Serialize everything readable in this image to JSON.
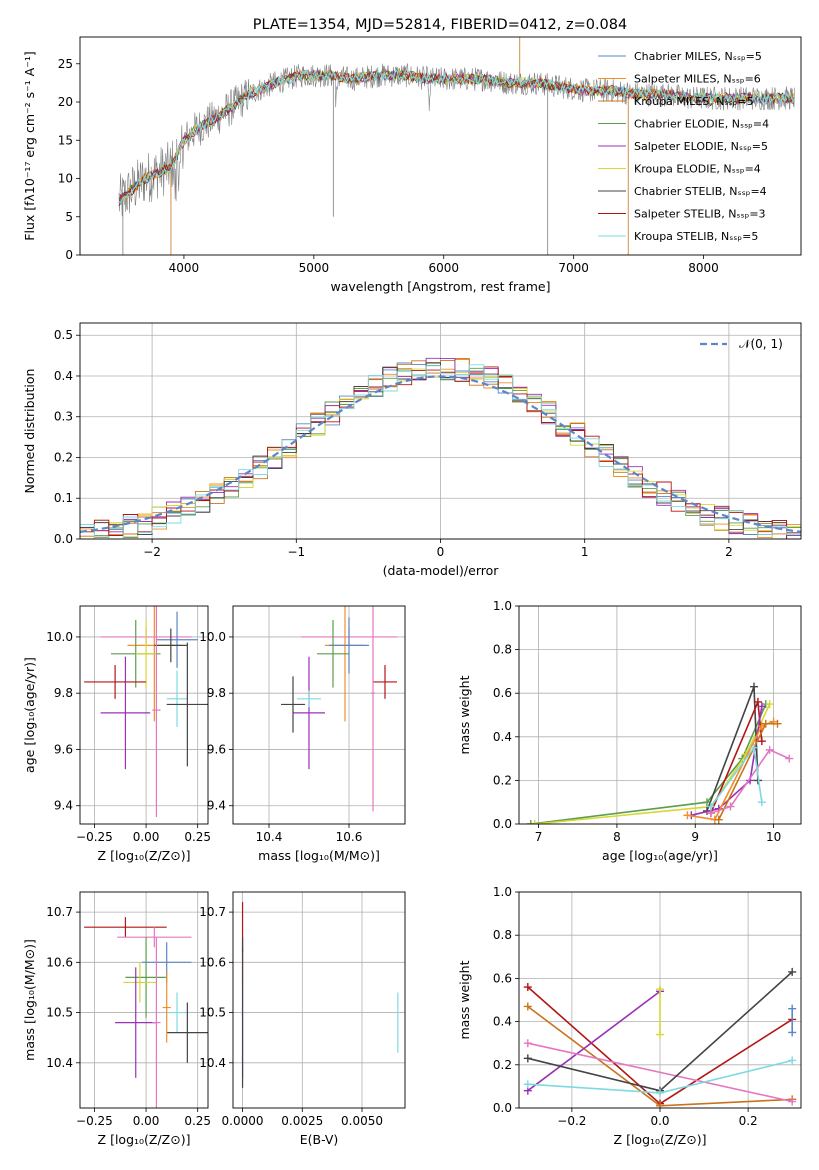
{
  "chart_data": [
    {
      "id": "spectrum",
      "type": "line",
      "title": "PLATE=1354, MJD=52814, FIBERID=0412, z=0.084",
      "xlabel": "wavelength [Angstrom, rest frame]",
      "ylabel": "Flux [fλ10⁻¹⁷ erg cm⁻² s⁻¹ A⁻¹]",
      "xlim": [
        3200,
        8750
      ],
      "ylim": [
        0,
        28.5
      ],
      "xticks": [
        "4000",
        "5000",
        "6000",
        "7000",
        "8000"
      ],
      "yticks": [
        "0",
        "5",
        "10",
        "15",
        "20",
        "25"
      ],
      "grid": false,
      "legend_position": "top-right",
      "series": [
        {
          "name": "Chabrier MILES, Nₛₛₚ=5",
          "color": "#5b86c8"
        },
        {
          "name": "Salpeter MILES, Nₛₛₚ=6",
          "color": "#f28e2b"
        },
        {
          "name": "Kroupa MILES, Nₛₛₚ=5",
          "color": "#c8741c"
        },
        {
          "name": "Chabrier ELODIE, Nₛₛₚ=4",
          "color": "#5a9e4b"
        },
        {
          "name": "Salpeter ELODIE, Nₛₛₚ=5",
          "color": "#9b30b8"
        },
        {
          "name": "Kroupa ELODIE, Nₛₛₚ=4",
          "color": "#d7d735"
        },
        {
          "name": "Chabrier STELIB, Nₛₛₚ=4",
          "color": "#444444"
        },
        {
          "name": "Salpeter STELIB, Nₛₛₚ=3",
          "color": "#b31515"
        },
        {
          "name": "Kroupa STELIB, Nₛₛₚ=5",
          "color": "#7fd9e0"
        }
      ],
      "continuum": {
        "x": [
          3500,
          3700,
          3900,
          4000,
          4100,
          4300,
          4500,
          4700,
          4900,
          5100,
          5300,
          5500,
          5700,
          5900,
          6100,
          6300,
          6500,
          6700,
          6900,
          7100,
          7300,
          7500,
          7700,
          7900,
          8100,
          8300,
          8500,
          8700
        ],
        "y": [
          7,
          10,
          11.5,
          15,
          16.5,
          18.5,
          21,
          22.5,
          23.5,
          23.5,
          23,
          23.5,
          23.5,
          23,
          23,
          23,
          22.5,
          22.5,
          22,
          21.5,
          21.5,
          21,
          21,
          20.5,
          20.5,
          20.5,
          20.5,
          20.5
        ]
      }
    },
    {
      "id": "residuals",
      "type": "bar",
      "xlabel": "(data-model)/error",
      "ylabel": "Normed distribution",
      "xlim": [
        -2.5,
        2.5
      ],
      "ylim": [
        0,
        0.53
      ],
      "xticks": [
        "−2",
        "−1",
        "0",
        "1",
        "2"
      ],
      "yticks": [
        "0.0",
        "0.1",
        "0.2",
        "0.3",
        "0.4",
        "0.5"
      ],
      "grid": true,
      "legend_position": "top-right",
      "legend": "𝒩(0, 1)",
      "gauss_color": "#5b86c8",
      "bin_width": 0.1
    },
    {
      "id": "age-vs-Z",
      "type": "scatter",
      "xlabel": "Z [log₁₀(Z/Z⊙)]",
      "ylabel": "age  [log₁₀(age/yr)]",
      "xlim": [
        -0.32,
        0.3
      ],
      "ylim": [
        9.335,
        10.11
      ],
      "xticks": [
        "−0.25",
        "0.00",
        "0.25"
      ],
      "yticks": [
        "9.4",
        "9.6",
        "9.8",
        "10.0"
      ],
      "grid": true,
      "points": [
        {
          "x": 0.0,
          "y": 10.0,
          "xerr": 0.22,
          "yerr": 0.03,
          "color": "#e377c2"
        },
        {
          "x": 0.04,
          "y": 9.97,
          "xerr": 0.13,
          "yerr": 0.27,
          "color": "#f28e2b"
        },
        {
          "x": 0.15,
          "y": 9.99,
          "xerr": 0.1,
          "yerr": 0.1,
          "color": "#5b86c8"
        },
        {
          "x": -0.05,
          "y": 9.94,
          "xerr": 0.12,
          "yerr": 0.12,
          "color": "#5a9e4b"
        },
        {
          "x": 0.0,
          "y": 9.94,
          "xerr": 0.05,
          "yerr": 0.12,
          "color": "#d7d735"
        },
        {
          "x": -0.1,
          "y": 9.73,
          "xerr": 0.12,
          "yerr": 0.2,
          "color": "#9b30b8"
        },
        {
          "x": -0.15,
          "y": 9.84,
          "xerr": 0.15,
          "yerr": 0.06,
          "color": "#b31515"
        },
        {
          "x": 0.15,
          "y": 9.78,
          "xerr": 0.05,
          "yerr": 0.1,
          "color": "#7fd9e0"
        },
        {
          "x": 0.2,
          "y": 9.76,
          "xerr": 0.1,
          "yerr": 0.22,
          "color": "#444444"
        },
        {
          "x": 0.12,
          "y": 9.97,
          "xerr": 0.08,
          "yerr": 0.06,
          "color": "#444444"
        },
        {
          "x": 0.05,
          "y": 9.74,
          "xerr": 0.02,
          "yerr": 0.38,
          "color": "#e377c2"
        }
      ]
    },
    {
      "id": "age-vs-mass",
      "type": "scatter",
      "xlabel": "mass [log₁₀(M/M⊙)]",
      "ylabel": "",
      "xlim": [
        10.31,
        10.74
      ],
      "ylim": [
        9.335,
        10.11
      ],
      "xticks": [
        "10.4",
        "10.6"
      ],
      "yticks": [
        "9.4",
        "9.6",
        "9.8",
        "10.0"
      ],
      "grid": true,
      "points": [
        {
          "x": 10.6,
          "y": 10.0,
          "xerr": 0.12,
          "yerr": 0.03,
          "color": "#e377c2"
        },
        {
          "x": 10.59,
          "y": 9.97,
          "xerr": 0.05,
          "yerr": 0.27,
          "color": "#f28e2b"
        },
        {
          "x": 10.6,
          "y": 9.97,
          "xerr": 0.05,
          "yerr": 0.1,
          "color": "#5b86c8"
        },
        {
          "x": 10.56,
          "y": 9.94,
          "xerr": 0.04,
          "yerr": 0.12,
          "color": "#5a9e4b"
        },
        {
          "x": 10.5,
          "y": 9.73,
          "xerr": 0.04,
          "yerr": 0.2,
          "color": "#9b30b8"
        },
        {
          "x": 10.69,
          "y": 9.84,
          "xerr": 0.03,
          "yerr": 0.06,
          "color": "#b31515"
        },
        {
          "x": 10.5,
          "y": 9.78,
          "xerr": 0.03,
          "yerr": 0.03,
          "color": "#7fd9e0"
        },
        {
          "x": 10.46,
          "y": 9.76,
          "xerr": 0.03,
          "yerr": 0.1,
          "color": "#444444"
        },
        {
          "x": 10.66,
          "y": 9.8,
          "xerr": 0.005,
          "yerr": 0.42,
          "color": "#e377c2"
        }
      ]
    },
    {
      "id": "mass-weight-vs-age",
      "type": "line",
      "xlabel": "age  [log₁₀(age/yr)]",
      "ylabel": "mass weight",
      "xlim": [
        6.75,
        10.35
      ],
      "ylim": [
        0,
        1
      ],
      "xticks": [
        "7",
        "8",
        "9",
        "10"
      ],
      "yticks": [
        "0.0",
        "0.2",
        "0.4",
        "0.6",
        "0.8",
        "1.0"
      ],
      "grid": true,
      "series": [
        {
          "color": "#5a9e4b",
          "x": [
            6.9,
            9.15,
            9.6,
            9.9
          ],
          "y": [
            0.0,
            0.1,
            0.3,
            0.55
          ]
        },
        {
          "color": "#d7d735",
          "x": [
            6.95,
            9.2,
            9.65,
            9.95
          ],
          "y": [
            0.0,
            0.08,
            0.32,
            0.55
          ]
        },
        {
          "color": "#444444",
          "x": [
            9.15,
            9.75,
            9.8
          ],
          "y": [
            0.06,
            0.63,
            0.2
          ]
        },
        {
          "color": "#b31515",
          "x": [
            9.2,
            9.8,
            9.85
          ],
          "y": [
            0.05,
            0.56,
            0.38
          ]
        },
        {
          "color": "#9b30b8",
          "x": [
            8.95,
            9.3,
            9.7,
            9.85
          ],
          "y": [
            0.04,
            0.07,
            0.2,
            0.54
          ]
        },
        {
          "color": "#f28e2b",
          "x": [
            8.9,
            9.25,
            9.85,
            10.0
          ],
          "y": [
            0.04,
            0.02,
            0.45,
            0.47
          ]
        },
        {
          "color": "#c8741c",
          "x": [
            9.3,
            9.9,
            10.05
          ],
          "y": [
            0.02,
            0.46,
            0.46
          ]
        },
        {
          "color": "#e377c2",
          "x": [
            9.2,
            9.45,
            9.95,
            10.2
          ],
          "y": [
            0.05,
            0.08,
            0.34,
            0.3
          ]
        },
        {
          "color": "#7fd9e0",
          "x": [
            9.2,
            9.75,
            9.85
          ],
          "y": [
            0.08,
            0.35,
            0.1
          ]
        }
      ]
    },
    {
      "id": "mass-vs-Z",
      "type": "scatter",
      "xlabel": "Z [log₁₀(Z/Z⊙)]",
      "ylabel": "mass [log₁₀(M/M⊙)]",
      "xlim": [
        -0.32,
        0.3
      ],
      "ylim": [
        10.31,
        10.74
      ],
      "xticks": [
        "−0.25",
        "0.00",
        "0.25"
      ],
      "yticks": [
        "10.4",
        "10.5",
        "10.6",
        "10.7"
      ],
      "grid": true,
      "points": [
        {
          "x": -0.1,
          "y": 10.67,
          "xerr": 0.2,
          "yerr": 0.02,
          "color": "#b31515"
        },
        {
          "x": 0.04,
          "y": 10.65,
          "xerr": 0.18,
          "yerr": 0.02,
          "color": "#e377c2"
        },
        {
          "x": 0.1,
          "y": 10.6,
          "xerr": 0.12,
          "yerr": 0.04,
          "color": "#5b86c8"
        },
        {
          "x": 0.0,
          "y": 10.57,
          "xerr": 0.1,
          "yerr": 0.08,
          "color": "#5a9e4b"
        },
        {
          "x": -0.03,
          "y": 10.56,
          "xerr": 0.08,
          "yerr": 0.04,
          "color": "#d7d735"
        },
        {
          "x": -0.05,
          "y": 10.48,
          "xerr": 0.1,
          "yerr": 0.11,
          "color": "#9b30b8"
        },
        {
          "x": 0.15,
          "y": 10.5,
          "xerr": 0.05,
          "yerr": 0.04,
          "color": "#7fd9e0"
        },
        {
          "x": 0.2,
          "y": 10.46,
          "xerr": 0.1,
          "yerr": 0.06,
          "color": "#444444"
        },
        {
          "x": 0.1,
          "y": 10.51,
          "xerr": 0.02,
          "yerr": 0.07,
          "color": "#f28e2b"
        },
        {
          "x": 0.05,
          "y": 10.48,
          "xerr": 0.02,
          "yerr": 0.17,
          "color": "#e377c2"
        }
      ]
    },
    {
      "id": "mass-vs-EBV",
      "type": "scatter",
      "xlabel": "E(B-V)",
      "ylabel": "",
      "xlim": [
        -0.0004,
        0.0068
      ],
      "ylim": [
        10.31,
        10.74
      ],
      "xticks": [
        "0.0000",
        "0.0025",
        "0.0050"
      ],
      "yticks": [
        "10.4",
        "10.5",
        "10.6",
        "10.7"
      ],
      "grid": true,
      "points": [
        {
          "x": 0.0,
          "y": 10.67,
          "xerr": 0.0,
          "yerr": 0.05,
          "color": "#b31515"
        },
        {
          "x": 0.0,
          "y": 10.6,
          "xerr": 0.0,
          "yerr": 0.04,
          "color": "#d7d735"
        },
        {
          "x": 0.0,
          "y": 10.5,
          "xerr": 0.0,
          "yerr": 0.13,
          "color": "#9b30b8"
        },
        {
          "x": 0.0,
          "y": 10.5,
          "xerr": 0.0,
          "yerr": 0.15,
          "color": "#444444"
        },
        {
          "x": 0.0065,
          "y": 10.48,
          "xerr": 0.0,
          "yerr": 0.06,
          "color": "#7fd9e0"
        }
      ]
    },
    {
      "id": "mass-weight-vs-Z",
      "type": "line",
      "xlabel": "Z [log₁₀(Z/Z⊙)]",
      "ylabel": "mass weight",
      "xlim": [
        -0.32,
        0.32
      ],
      "ylim": [
        0,
        1
      ],
      "xticks": [
        "−0.2",
        "0.0",
        "0.2"
      ],
      "yticks": [
        "0.0",
        "0.2",
        "0.4",
        "0.6",
        "0.8",
        "1.0"
      ],
      "grid": true,
      "series": [
        {
          "color": "#b31515",
          "x": [
            -0.3,
            0.0,
            0.3
          ],
          "y": [
            0.56,
            0.02,
            0.41
          ]
        },
        {
          "color": "#c8741c",
          "x": [
            -0.3,
            0.0,
            0.3
          ],
          "y": [
            0.47,
            0.01,
            0.04
          ]
        },
        {
          "color": "#9b30b8",
          "x": [
            -0.3,
            0.0
          ],
          "y": [
            0.08,
            0.54
          ]
        },
        {
          "color": "#e377c2",
          "x": [
            -0.3,
            0.3
          ],
          "y": [
            0.3,
            0.03
          ]
        },
        {
          "color": "#444444",
          "x": [
            -0.3,
            0.0,
            0.3
          ],
          "y": [
            0.23,
            0.08,
            0.63
          ]
        },
        {
          "color": "#7fd9e0",
          "x": [
            -0.3,
            0.0,
            0.3
          ],
          "y": [
            0.11,
            0.07,
            0.22
          ]
        },
        {
          "color": "#d7d735",
          "x": [
            0.0,
            0.0
          ],
          "y": [
            0.55,
            0.34
          ]
        },
        {
          "color": "#5b86c8",
          "x": [
            0.3,
            0.3
          ],
          "y": [
            0.46,
            0.35
          ]
        }
      ]
    }
  ]
}
